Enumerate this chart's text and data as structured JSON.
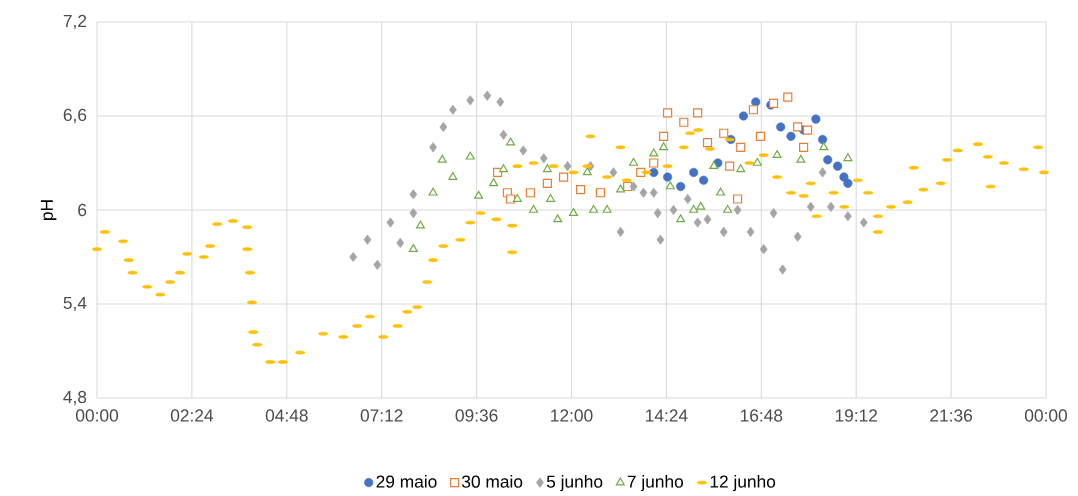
{
  "chart_data": {
    "type": "scatter",
    "ylabel": "pH",
    "xlim": [
      0,
      24
    ],
    "ylim": [
      4.8,
      7.2
    ],
    "xticks": [
      {
        "value": 0,
        "label": "00:00"
      },
      {
        "value": 2.4,
        "label": "02:24"
      },
      {
        "value": 4.8,
        "label": "04:48"
      },
      {
        "value": 7.2,
        "label": "07:12"
      },
      {
        "value": 9.6,
        "label": "09:36"
      },
      {
        "value": 12,
        "label": "12:00"
      },
      {
        "value": 14.4,
        "label": "14:24"
      },
      {
        "value": 16.8,
        "label": "16:48"
      },
      {
        "value": 19.2,
        "label": "19:12"
      },
      {
        "value": 21.6,
        "label": "21:36"
      },
      {
        "value": 24,
        "label": "00:00"
      }
    ],
    "yticks": [
      {
        "value": 4.8,
        "label": "4,8"
      },
      {
        "value": 5.4,
        "label": "5,4"
      },
      {
        "value": 6,
        "label": "6"
      },
      {
        "value": 6.6,
        "label": "6,6"
      },
      {
        "value": 7.2,
        "label": "7,2"
      }
    ],
    "grid": true,
    "legend": "bottom",
    "series": [
      {
        "name": "29 maio",
        "color": "#4472c4",
        "marker": "circle",
        "x": [
          14.08,
          14.43,
          14.76,
          15.09,
          15.34,
          15.7,
          16.03,
          16.35,
          16.66,
          17.04,
          17.29,
          17.55,
          17.87,
          18.18,
          18.35,
          18.48,
          18.73,
          18.89,
          18.99
        ],
        "values": [
          6.24,
          6.21,
          6.15,
          6.24,
          6.19,
          6.3,
          6.45,
          6.6,
          6.69,
          6.67,
          6.53,
          6.47,
          6.51,
          6.58,
          6.45,
          6.32,
          6.28,
          6.21,
          6.17
        ]
      },
      {
        "name": "30 maio",
        "color": "#ed7d31",
        "marker": "square",
        "x": [
          10.13,
          10.38,
          10.46,
          10.96,
          11.39,
          11.8,
          12.23,
          12.73,
          13.42,
          13.75,
          14.08,
          14.33,
          14.43,
          14.84,
          15.19,
          15.44,
          15.85,
          16.0,
          16.2,
          16.28,
          16.6,
          16.78,
          17.11,
          17.47,
          17.72,
          17.87,
          17.97
        ],
        "values": [
          6.24,
          6.11,
          6.07,
          6.11,
          6.17,
          6.21,
          6.13,
          6.11,
          6.15,
          6.24,
          6.3,
          6.47,
          6.62,
          6.56,
          6.62,
          6.43,
          6.49,
          6.28,
          6.07,
          6.4,
          6.64,
          6.47,
          6.68,
          6.72,
          6.53,
          6.4,
          6.51
        ]
      },
      {
        "name": "5 junho",
        "color": "#a5a5a5",
        "marker": "diamond",
        "x": [
          6.48,
          6.84,
          7.09,
          7.42,
          7.67,
          8.0,
          8.0,
          8.5,
          8.76,
          9.0,
          9.44,
          9.87,
          10.2,
          10.28,
          10.78,
          11.3,
          11.9,
          12.48,
          13.06,
          13.24,
          13.57,
          13.82,
          14.08,
          14.18,
          14.25,
          14.58,
          14.94,
          15.19,
          15.44,
          15.85,
          16.2,
          16.53,
          16.86,
          17.11,
          17.34,
          17.72,
          18.05,
          18.35,
          18.56,
          18.99,
          19.39
        ],
        "values": [
          5.7,
          5.81,
          5.65,
          5.92,
          5.79,
          5.98,
          6.1,
          6.4,
          6.53,
          6.64,
          6.7,
          6.73,
          6.69,
          6.48,
          6.38,
          6.33,
          6.28,
          6.28,
          6.24,
          5.86,
          6.15,
          6.11,
          6.11,
          5.98,
          5.81,
          6.0,
          6.07,
          5.92,
          5.94,
          5.86,
          6.0,
          5.86,
          5.75,
          5.98,
          5.62,
          5.83,
          6.02,
          6.24,
          6.02,
          5.96,
          5.92
        ]
      },
      {
        "name": "7 junho",
        "color": "#70ad47",
        "marker": "triangle",
        "x": [
          8.0,
          8.18,
          8.5,
          8.73,
          9.0,
          9.44,
          9.65,
          10.03,
          10.28,
          10.46,
          10.63,
          11.04,
          11.39,
          11.47,
          11.65,
          12.05,
          12.4,
          12.56,
          12.9,
          13.24,
          13.57,
          14.08,
          14.33,
          14.5,
          14.76,
          15.09,
          15.27,
          15.6,
          15.77,
          15.95,
          16.28,
          16.7,
          17.2,
          17.8,
          18.38,
          18.99
        ],
        "values": [
          5.75,
          5.9,
          6.11,
          6.32,
          6.21,
          6.34,
          6.09,
          6.17,
          6.26,
          6.43,
          6.07,
          6.0,
          6.26,
          6.07,
          5.94,
          5.98,
          6.24,
          6.0,
          6.0,
          6.13,
          6.3,
          6.36,
          6.4,
          6.15,
          5.94,
          6.0,
          6.02,
          6.28,
          6.11,
          6.0,
          6.26,
          6.3,
          6.35,
          6.32,
          6.4,
          6.33
        ]
      },
      {
        "name": "12 junho",
        "color": "#ffc000",
        "x": [
          0,
          0.2,
          0.66,
          0.8,
          0.9,
          1.27,
          1.6,
          1.85,
          2.1,
          2.28,
          2.7,
          2.86,
          3.04,
          3.44,
          3.8,
          3.8,
          3.87,
          3.92,
          3.95,
          4.05,
          4.38,
          4.7,
          5.14,
          5.72,
          6.23,
          6.58,
          6.9,
          7.24,
          7.6,
          7.85,
          8.1,
          8.35,
          8.5,
          8.76,
          9.19,
          9.44,
          9.7,
          10.1,
          10.5,
          10.5,
          10.63,
          11.04,
          11.55,
          12.05,
          12.4,
          12.48,
          12.9,
          13.24,
          13.4,
          13.9,
          14.43,
          14.84,
          15.0,
          15.2,
          15.5,
          16.0,
          16.5,
          16.86,
          17.2,
          17.55,
          17.87,
          18.05,
          18.2,
          18.63,
          18.9,
          19.24,
          19.5,
          19.75,
          19.75,
          20.08,
          20.5,
          20.66,
          20.9,
          21.34,
          21.5,
          21.77,
          22.28,
          22.53,
          22.6,
          22.94,
          23.44,
          23.8,
          23.95
        ],
        "values": [
          5.75,
          5.86,
          5.8,
          5.68,
          5.6,
          5.51,
          5.46,
          5.54,
          5.6,
          5.72,
          5.7,
          5.77,
          5.91,
          5.93,
          5.89,
          5.75,
          5.6,
          5.41,
          5.22,
          5.14,
          5.03,
          5.03,
          5.09,
          5.21,
          5.19,
          5.26,
          5.32,
          5.19,
          5.26,
          5.35,
          5.38,
          5.54,
          5.68,
          5.77,
          5.81,
          5.92,
          5.98,
          5.94,
          5.9,
          5.73,
          6.28,
          6.3,
          6.28,
          6.24,
          6.28,
          6.47,
          6.21,
          6.4,
          6.19,
          6.24,
          6.28,
          6.4,
          6.49,
          6.51,
          6.39,
          6.45,
          6.3,
          6.35,
          6.21,
          6.11,
          6.09,
          6.17,
          5.96,
          6.11,
          6.02,
          6.19,
          6.11,
          5.96,
          5.86,
          6.02,
          6.05,
          6.27,
          6.13,
          6.17,
          6.32,
          6.38,
          6.42,
          6.34,
          6.15,
          6.3,
          6.26,
          6.4,
          6.24
        ]
      }
    ]
  }
}
